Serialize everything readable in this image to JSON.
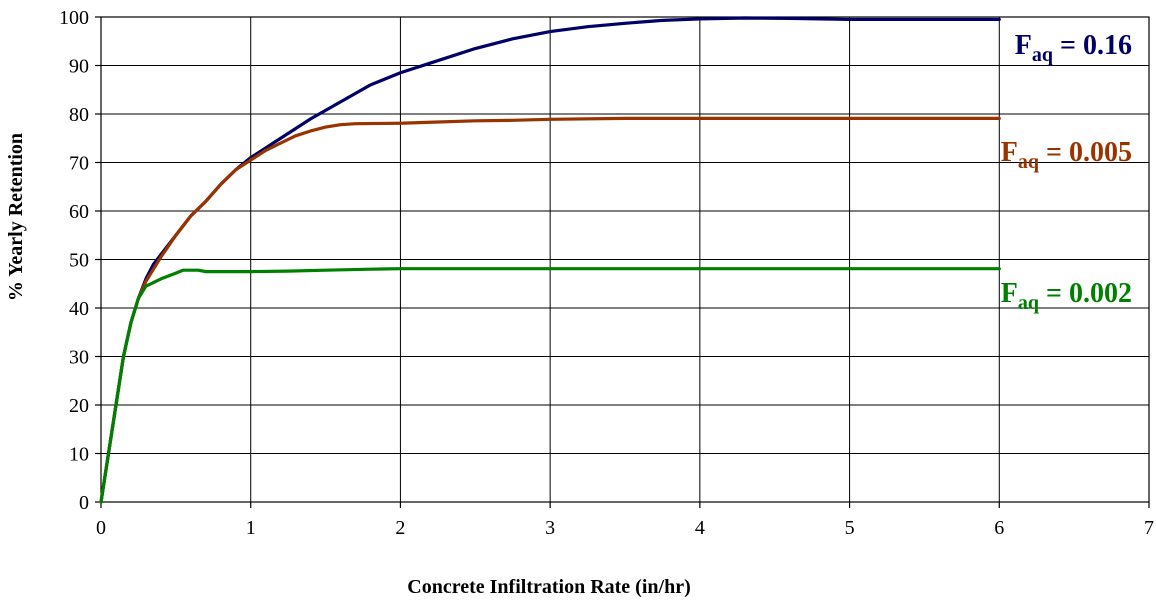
{
  "chart_data": {
    "type": "line",
    "title": "",
    "xlabel": "Concrete Infiltration Rate (in/hr)",
    "ylabel": "% Yearly Retention",
    "xlim": [
      0,
      7
    ],
    "ylim": [
      0,
      100
    ],
    "x_ticks": [
      0,
      1,
      2,
      3,
      4,
      5,
      6,
      7
    ],
    "y_ticks": [
      0,
      10,
      20,
      30,
      40,
      50,
      60,
      70,
      80,
      90,
      100
    ],
    "grid": true,
    "legend": "none",
    "series": [
      {
        "label_main": "F",
        "label_sub": "aq",
        "label_value": " = 0.16",
        "color": "#000066",
        "points": [
          [
            0,
            0
          ],
          [
            0.05,
            10
          ],
          [
            0.1,
            20
          ],
          [
            0.15,
            30
          ],
          [
            0.2,
            37
          ],
          [
            0.25,
            42
          ],
          [
            0.3,
            46
          ],
          [
            0.35,
            49
          ],
          [
            0.4,
            51
          ],
          [
            0.5,
            55
          ],
          [
            0.6,
            59
          ],
          [
            0.7,
            62
          ],
          [
            0.8,
            65.5
          ],
          [
            0.9,
            68.5
          ],
          [
            1.0,
            71
          ],
          [
            1.1,
            73
          ],
          [
            1.2,
            75
          ],
          [
            1.4,
            79
          ],
          [
            1.6,
            82.5
          ],
          [
            1.8,
            86
          ],
          [
            2.0,
            88.5
          ],
          [
            2.2,
            90.5
          ],
          [
            2.5,
            93.5
          ],
          [
            2.75,
            95.5
          ],
          [
            3.0,
            97
          ],
          [
            3.25,
            98
          ],
          [
            3.5,
            98.7
          ],
          [
            3.75,
            99.3
          ],
          [
            4.0,
            99.6
          ],
          [
            4.3,
            99.8
          ],
          [
            4.6,
            99.7
          ],
          [
            5.0,
            99.5
          ],
          [
            5.5,
            99.5
          ],
          [
            6.0,
            99.5
          ]
        ]
      },
      {
        "label_main": "F",
        "label_sub": "aq",
        "label_value": " = 0.005",
        "color": "#993300",
        "points": [
          [
            0,
            0
          ],
          [
            0.05,
            10
          ],
          [
            0.1,
            20
          ],
          [
            0.15,
            30
          ],
          [
            0.2,
            37
          ],
          [
            0.25,
            42
          ],
          [
            0.3,
            45.5
          ],
          [
            0.35,
            48
          ],
          [
            0.4,
            50.5
          ],
          [
            0.5,
            55
          ],
          [
            0.6,
            59
          ],
          [
            0.7,
            62
          ],
          [
            0.8,
            65.5
          ],
          [
            0.9,
            68.5
          ],
          [
            1.0,
            70.5
          ],
          [
            1.1,
            72.5
          ],
          [
            1.2,
            74
          ],
          [
            1.3,
            75.5
          ],
          [
            1.4,
            76.5
          ],
          [
            1.5,
            77.3
          ],
          [
            1.6,
            77.8
          ],
          [
            1.7,
            78
          ],
          [
            2.0,
            78.1
          ],
          [
            2.2,
            78.3
          ],
          [
            2.5,
            78.6
          ],
          [
            2.75,
            78.7
          ],
          [
            3.0,
            78.9
          ],
          [
            3.5,
            79.1
          ],
          [
            4.0,
            79.1
          ],
          [
            5.0,
            79.1
          ],
          [
            6.0,
            79.1
          ]
        ]
      },
      {
        "label_main": "F",
        "label_sub": "aq",
        "label_value": " = 0.002",
        "color": "#008000",
        "points": [
          [
            0,
            0
          ],
          [
            0.05,
            10
          ],
          [
            0.1,
            20
          ],
          [
            0.15,
            30
          ],
          [
            0.2,
            37
          ],
          [
            0.25,
            42
          ],
          [
            0.3,
            44.5
          ],
          [
            0.4,
            46
          ],
          [
            0.5,
            47.2
          ],
          [
            0.55,
            47.8
          ],
          [
            0.65,
            47.8
          ],
          [
            0.7,
            47.5
          ],
          [
            1.0,
            47.5
          ],
          [
            1.25,
            47.6
          ],
          [
            1.5,
            47.8
          ],
          [
            1.8,
            48
          ],
          [
            2.0,
            48.1
          ],
          [
            3.0,
            48.1
          ],
          [
            4.0,
            48.1
          ],
          [
            5.0,
            48.1
          ],
          [
            6.0,
            48.1
          ]
        ]
      }
    ]
  }
}
